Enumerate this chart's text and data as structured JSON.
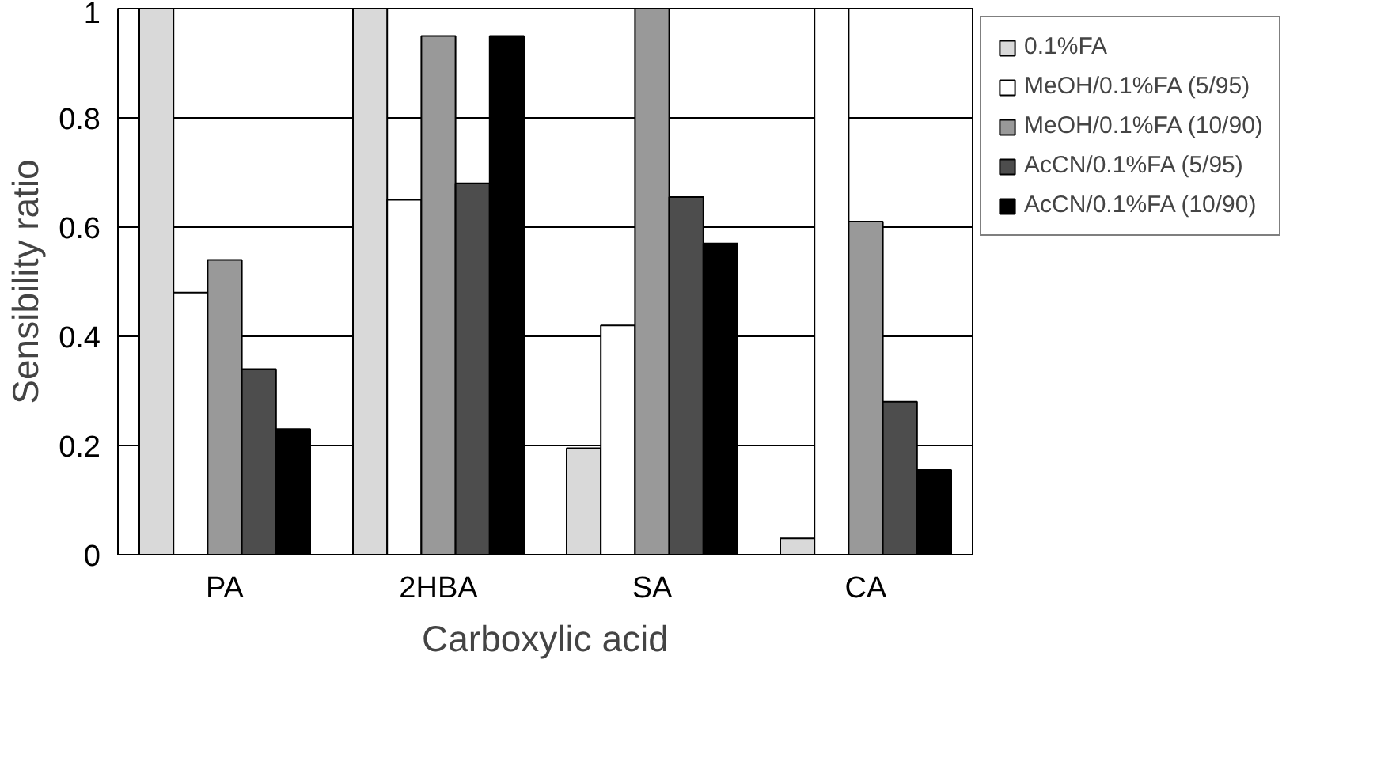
{
  "chart_data": {
    "type": "bar",
    "xlabel": "Carboxylic acid",
    "ylabel": "Sensibility ratio",
    "categories": [
      "PA",
      "2HBA",
      "SA",
      "CA"
    ],
    "series": [
      {
        "name": "0.1%FA",
        "color": "#d9d9d9",
        "values": [
          1,
          1,
          0.195,
          0.03
        ]
      },
      {
        "name": "MeOH/0.1%FA (5/95)",
        "color": "#ffffff",
        "values": [
          0.48,
          0.65,
          0.42,
          1
        ]
      },
      {
        "name": "MeOH/0.1%FA (10/90)",
        "color": "#999999",
        "values": [
          0.54,
          0.95,
          1,
          0.61
        ]
      },
      {
        "name": "AcCN/0.1%FA (5/95)",
        "color": "#4d4d4d",
        "values": [
          0.34,
          0.68,
          0.655,
          0.28
        ]
      },
      {
        "name": "AcCN/0.1%FA (10/90)",
        "color": "#000000",
        "values": [
          0.23,
          0.95,
          0.57,
          0.155
        ]
      }
    ],
    "ylim": [
      0,
      1
    ],
    "yticks": [
      0,
      0.2,
      0.4,
      0.6,
      0.8,
      1
    ],
    "grid": "y",
    "legend": "right"
  }
}
